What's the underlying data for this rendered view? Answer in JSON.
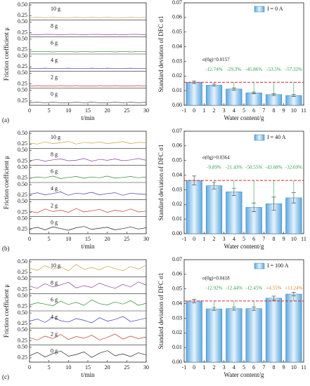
{
  "chart_data": [
    {
      "type": "line",
      "panel": "(a)",
      "xlabel": "t/min",
      "ylabel": "Friction coefficient μ",
      "x": [
        0,
        2,
        4,
        6,
        8,
        10,
        12,
        14,
        16,
        18,
        20,
        22,
        24,
        26,
        28,
        30
      ],
      "xlim": [
        0,
        30
      ],
      "xticks": [
        0,
        5,
        10,
        15,
        20,
        25,
        30
      ],
      "ylim": [
        0.15,
        0.55
      ],
      "yticks": [
        0.25,
        {
          "value": 0.5,
          "label": "0.50"
        }
      ],
      "series": [
        {
          "name": "0 g",
          "color": "#222222",
          "values": [
            0.21,
            0.22,
            0.21,
            0.22,
            0.21,
            0.21,
            0.22,
            0.21,
            0.22,
            0.21,
            0.21,
            0.22,
            0.21,
            0.22,
            0.21,
            0.22
          ]
        },
        {
          "name": "2 g",
          "color": "#c0392b",
          "values": [
            0.2,
            0.21,
            0.2,
            0.2,
            0.21,
            0.2,
            0.21,
            0.2,
            0.2,
            0.21,
            0.2,
            0.21,
            0.2,
            0.2,
            0.21,
            0.2
          ]
        },
        {
          "name": "4 g",
          "color": "#3b3bb8",
          "values": [
            0.21,
            0.21,
            0.22,
            0.21,
            0.21,
            0.22,
            0.21,
            0.21,
            0.22,
            0.21,
            0.22,
            0.21,
            0.21,
            0.22,
            0.21,
            0.21
          ]
        },
        {
          "name": "6 g",
          "color": "#2e8b2e",
          "values": [
            0.2,
            0.21,
            0.21,
            0.2,
            0.21,
            0.21,
            0.2,
            0.21,
            0.2,
            0.21,
            0.21,
            0.2,
            0.21,
            0.2,
            0.21,
            0.21
          ]
        },
        {
          "name": "8 g",
          "color": "#8b3d9b",
          "values": [
            0.21,
            0.2,
            0.21,
            0.21,
            0.2,
            0.21,
            0.21,
            0.2,
            0.21,
            0.21,
            0.2,
            0.21,
            0.2,
            0.21,
            0.21,
            0.2
          ]
        },
        {
          "name": "10 g",
          "color": "#c8a03c",
          "values": [
            0.2,
            0.21,
            0.2,
            0.21,
            0.2,
            0.2,
            0.21,
            0.2,
            0.21,
            0.2,
            0.21,
            0.2,
            0.2,
            0.21,
            0.2,
            0.21
          ]
        }
      ]
    },
    {
      "type": "bar",
      "xlabel": "Water content/g",
      "ylabel": "Standard deviation of DFC σ1",
      "xlim": [
        -1,
        11
      ],
      "xticks": [
        -1,
        0,
        1,
        2,
        3,
        4,
        5,
        6,
        7,
        8,
        9,
        10,
        11
      ],
      "ylim": [
        0,
        0.07
      ],
      "yticks": [
        {
          "value": 0,
          "label": "0.00"
        },
        {
          "value": 0.01,
          "label": "0.01"
        },
        {
          "value": 0.02,
          "label": "0.02"
        },
        {
          "value": 0.03,
          "label": "0.03"
        },
        {
          "value": 0.04,
          "label": "0.04"
        },
        {
          "value": 0.05,
          "label": "0.05"
        },
        {
          "value": 0.06,
          "label": "0.06"
        },
        {
          "value": 0.07,
          "label": "0.07"
        }
      ],
      "x": [
        0,
        2,
        4,
        6,
        8,
        10
      ],
      "series": [
        {
          "name": "I = 0 A",
          "color": "#5ba8e0",
          "values": [
            0.0157,
            0.0137,
            0.0111,
            0.0085,
            0.0073,
            0.0067
          ],
          "errors": [
            0.0008,
            0.0007,
            0.0008,
            0.0006,
            0.0006,
            0.0006
          ]
        }
      ],
      "reference_label": "σ(0g)=0.0157",
      "annotations": [
        "-12.74%",
        "-29.3%",
        "-45.86%",
        "-53.5%",
        "-57.32%"
      ]
    },
    {
      "type": "line",
      "panel": "(b)",
      "xlabel": "t/min",
      "ylabel": "Friction coefficient μ",
      "x": [
        0,
        2,
        4,
        6,
        8,
        10,
        12,
        14,
        16,
        18,
        20,
        22,
        24,
        26,
        28,
        30
      ],
      "xlim": [
        0,
        30
      ],
      "xticks": [
        0,
        5,
        10,
        15,
        20,
        25,
        30
      ],
      "ylim": [
        0.15,
        0.55
      ],
      "yticks": [
        0.25,
        {
          "value": 0.5,
          "label": "0.50"
        }
      ],
      "series": [
        {
          "name": "0 g",
          "color": "#222222",
          "values": [
            0.26,
            0.3,
            0.24,
            0.31,
            0.27,
            0.23,
            0.29,
            0.32,
            0.25,
            0.28,
            0.3,
            0.24,
            0.27,
            0.31,
            0.26,
            0.29
          ]
        },
        {
          "name": "2 g",
          "color": "#c0392b",
          "values": [
            0.28,
            0.24,
            0.33,
            0.27,
            0.3,
            0.25,
            0.34,
            0.26,
            0.29,
            0.32,
            0.25,
            0.3,
            0.27,
            0.33,
            0.26,
            0.28
          ]
        },
        {
          "name": "4 g",
          "color": "#3b3bb8",
          "values": [
            0.27,
            0.31,
            0.26,
            0.29,
            0.33,
            0.25,
            0.3,
            0.28,
            0.32,
            0.26,
            0.29,
            0.31,
            0.25,
            0.3,
            0.28,
            0.27
          ]
        },
        {
          "name": "6 g",
          "color": "#2e8b2e",
          "values": [
            0.25,
            0.28,
            0.26,
            0.3,
            0.24,
            0.27,
            0.29,
            0.25,
            0.28,
            0.26,
            0.3,
            0.25,
            0.27,
            0.29,
            0.26,
            0.28
          ]
        },
        {
          "name": "8 g",
          "color": "#8b3d9b",
          "values": [
            0.26,
            0.29,
            0.25,
            0.28,
            0.3,
            0.26,
            0.27,
            0.31,
            0.25,
            0.29,
            0.27,
            0.3,
            0.26,
            0.28,
            0.31,
            0.27
          ]
        },
        {
          "name": "10 g",
          "color": "#c8a03c",
          "values": [
            0.27,
            0.25,
            0.3,
            0.26,
            0.28,
            0.31,
            0.25,
            0.29,
            0.27,
            0.3,
            0.26,
            0.28,
            0.31,
            0.26,
            0.29,
            0.28
          ]
        }
      ]
    },
    {
      "type": "bar",
      "xlabel": "Water content/g",
      "ylabel": "Standard deviation of DFC σ1",
      "xlim": [
        -1,
        11
      ],
      "xticks": [
        -1,
        0,
        1,
        2,
        3,
        4,
        5,
        6,
        7,
        8,
        9,
        10,
        11
      ],
      "ylim": [
        0,
        0.07
      ],
      "yticks": [
        {
          "value": 0,
          "label": "0.00"
        },
        {
          "value": 0.01,
          "label": "0.01"
        },
        {
          "value": 0.02,
          "label": "0.02"
        },
        {
          "value": 0.03,
          "label": "0.03"
        },
        {
          "value": 0.04,
          "label": "0.04"
        },
        {
          "value": 0.05,
          "label": "0.05"
        },
        {
          "value": 0.06,
          "label": "0.06"
        },
        {
          "value": 0.07,
          "label": "0.07"
        }
      ],
      "x": [
        0,
        2,
        4,
        6,
        8,
        10
      ],
      "series": [
        {
          "name": "I = 40 A",
          "color": "#5ba8e0",
          "values": [
            0.0364,
            0.0328,
            0.0286,
            0.018,
            0.0205,
            0.0245
          ],
          "errors": [
            0.003,
            0.0022,
            0.0025,
            0.003,
            0.0045,
            0.0035
          ]
        }
      ],
      "reference_label": "σ(0g)=0.0364",
      "annotations": [
        "-9.89%",
        "-21.43%",
        "-50.55%",
        "-43.68%",
        "-32.69%"
      ]
    },
    {
      "type": "line",
      "panel": "(c)",
      "xlabel": "t/min",
      "ylabel": "Friction coefficient μ",
      "x": [
        0,
        2,
        4,
        6,
        8,
        10,
        12,
        14,
        16,
        18,
        20,
        22,
        24,
        26,
        28,
        30
      ],
      "xlim": [
        0,
        30
      ],
      "xticks": [
        0,
        5,
        10,
        15,
        20,
        25,
        30
      ],
      "ylim": [
        0.15,
        0.55
      ],
      "yticks": [
        0.25,
        {
          "value": 0.5,
          "label": "0.50"
        }
      ],
      "series": [
        {
          "name": "0 g",
          "color": "#222222",
          "values": [
            0.3,
            0.38,
            0.27,
            0.35,
            0.41,
            0.29,
            0.33,
            0.39,
            0.26,
            0.36,
            0.42,
            0.3,
            0.34,
            0.28,
            0.37,
            0.32
          ]
        },
        {
          "name": "2 g",
          "color": "#c0392b",
          "values": [
            0.32,
            0.27,
            0.36,
            0.3,
            0.4,
            0.28,
            0.35,
            0.31,
            0.38,
            0.27,
            0.33,
            0.41,
            0.29,
            0.36,
            0.3,
            0.34
          ]
        },
        {
          "name": "4 g",
          "color": "#3b3bb8",
          "values": [
            0.31,
            0.36,
            0.28,
            0.4,
            0.32,
            0.29,
            0.37,
            0.33,
            0.27,
            0.39,
            0.31,
            0.35,
            0.42,
            0.3,
            0.34,
            0.38
          ]
        },
        {
          "name": "6 g",
          "color": "#2e8b2e",
          "values": [
            0.29,
            0.34,
            0.31,
            0.27,
            0.38,
            0.3,
            0.35,
            0.28,
            0.41,
            0.32,
            0.29,
            0.36,
            0.31,
            0.39,
            0.28,
            0.33
          ]
        },
        {
          "name": "8 g",
          "color": "#8b3d9b",
          "values": [
            0.33,
            0.28,
            0.39,
            0.31,
            0.36,
            0.42,
            0.29,
            0.34,
            0.3,
            0.4,
            0.33,
            0.28,
            0.37,
            0.31,
            0.43,
            0.35
          ]
        },
        {
          "name": "10 g",
          "color": "#c8a03c",
          "values": [
            0.35,
            0.3,
            0.41,
            0.33,
            0.38,
            0.29,
            0.44,
            0.32,
            0.37,
            0.31,
            0.4,
            0.34,
            0.29,
            0.39,
            0.33,
            0.42
          ]
        }
      ]
    },
    {
      "type": "bar",
      "xlabel": "Water content/g",
      "ylabel": "Standard deviation of DFC σ1",
      "xlim": [
        -1,
        11
      ],
      "xticks": [
        -1,
        0,
        1,
        2,
        3,
        4,
        5,
        6,
        7,
        8,
        9,
        10,
        11
      ],
      "ylim": [
        0,
        0.07
      ],
      "yticks": [
        {
          "value": 0,
          "label": "0.00"
        },
        {
          "value": 0.01,
          "label": "0.01"
        },
        {
          "value": 0.02,
          "label": "0.02"
        },
        {
          "value": 0.03,
          "label": "0.03"
        },
        {
          "value": 0.04,
          "label": "0.04"
        },
        {
          "value": 0.05,
          "label": "0.05"
        },
        {
          "value": 0.06,
          "label": "0.06"
        },
        {
          "value": 0.07,
          "label": "0.07"
        }
      ],
      "x": [
        0,
        2,
        4,
        6,
        8,
        10
      ],
      "series": [
        {
          "name": "I = 100 A",
          "color": "#5ba8e0",
          "values": [
            0.0418,
            0.0364,
            0.0366,
            0.0366,
            0.0437,
            0.0465
          ],
          "errors": [
            0.0012,
            0.001,
            0.0011,
            0.0012,
            0.0014,
            0.0013
          ]
        }
      ],
      "reference_label": "σ(0g)=0.0418",
      "annotations": [
        "-12.92%",
        "-12.44%",
        "-12.45%",
        "+4.55%",
        "+11.24%"
      ]
    }
  ]
}
